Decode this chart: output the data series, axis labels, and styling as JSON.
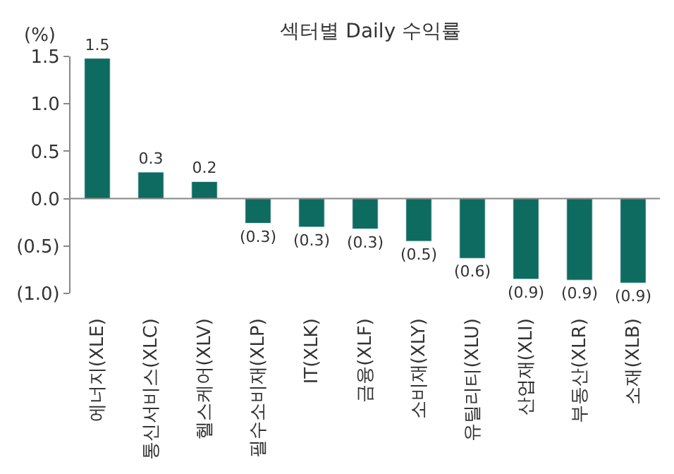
{
  "chart_data": {
    "type": "bar",
    "title": "섹터별 Daily 수익률",
    "ylabel": "(%)",
    "categories": [
      "에너지(XLE)",
      "통신서비스(XLC)",
      "헬스케어(XLV)",
      "필수소비재(XLP)",
      "IT(XLK)",
      "금융(XLF)",
      "소비재(XLY)",
      "유틸리티(XLU)",
      "산업재(XLI)",
      "부동산(XLR)",
      "소재(XLB)"
    ],
    "values": [
      1.48,
      0.28,
      0.18,
      -0.26,
      -0.3,
      -0.32,
      -0.45,
      -0.63,
      -0.85,
      -0.86,
      -0.89
    ],
    "value_labels": [
      "1.5",
      "0.3",
      "0.2",
      "(0.3)",
      "(0.3)",
      "(0.3)",
      "(0.5)",
      "(0.6)",
      "(0.9)",
      "(0.9)",
      "(0.9)"
    ],
    "color": "#0e6b5f",
    "ylim": [
      -1.0,
      1.5
    ],
    "yticks": [
      1.5,
      {
        "value": 1.0,
        "label": "1.0"
      },
      0.5,
      {
        "value": 0.0,
        "label": "0.0"
      },
      {
        "value": -0.5,
        "label": "(0.5)"
      },
      {
        "value": -1.0,
        "label": "(1.0)"
      }
    ],
    "ref_lines": [
      {
        "axis": "y",
        "value": 0,
        "color": "#888888"
      }
    ],
    "legend": false
  }
}
